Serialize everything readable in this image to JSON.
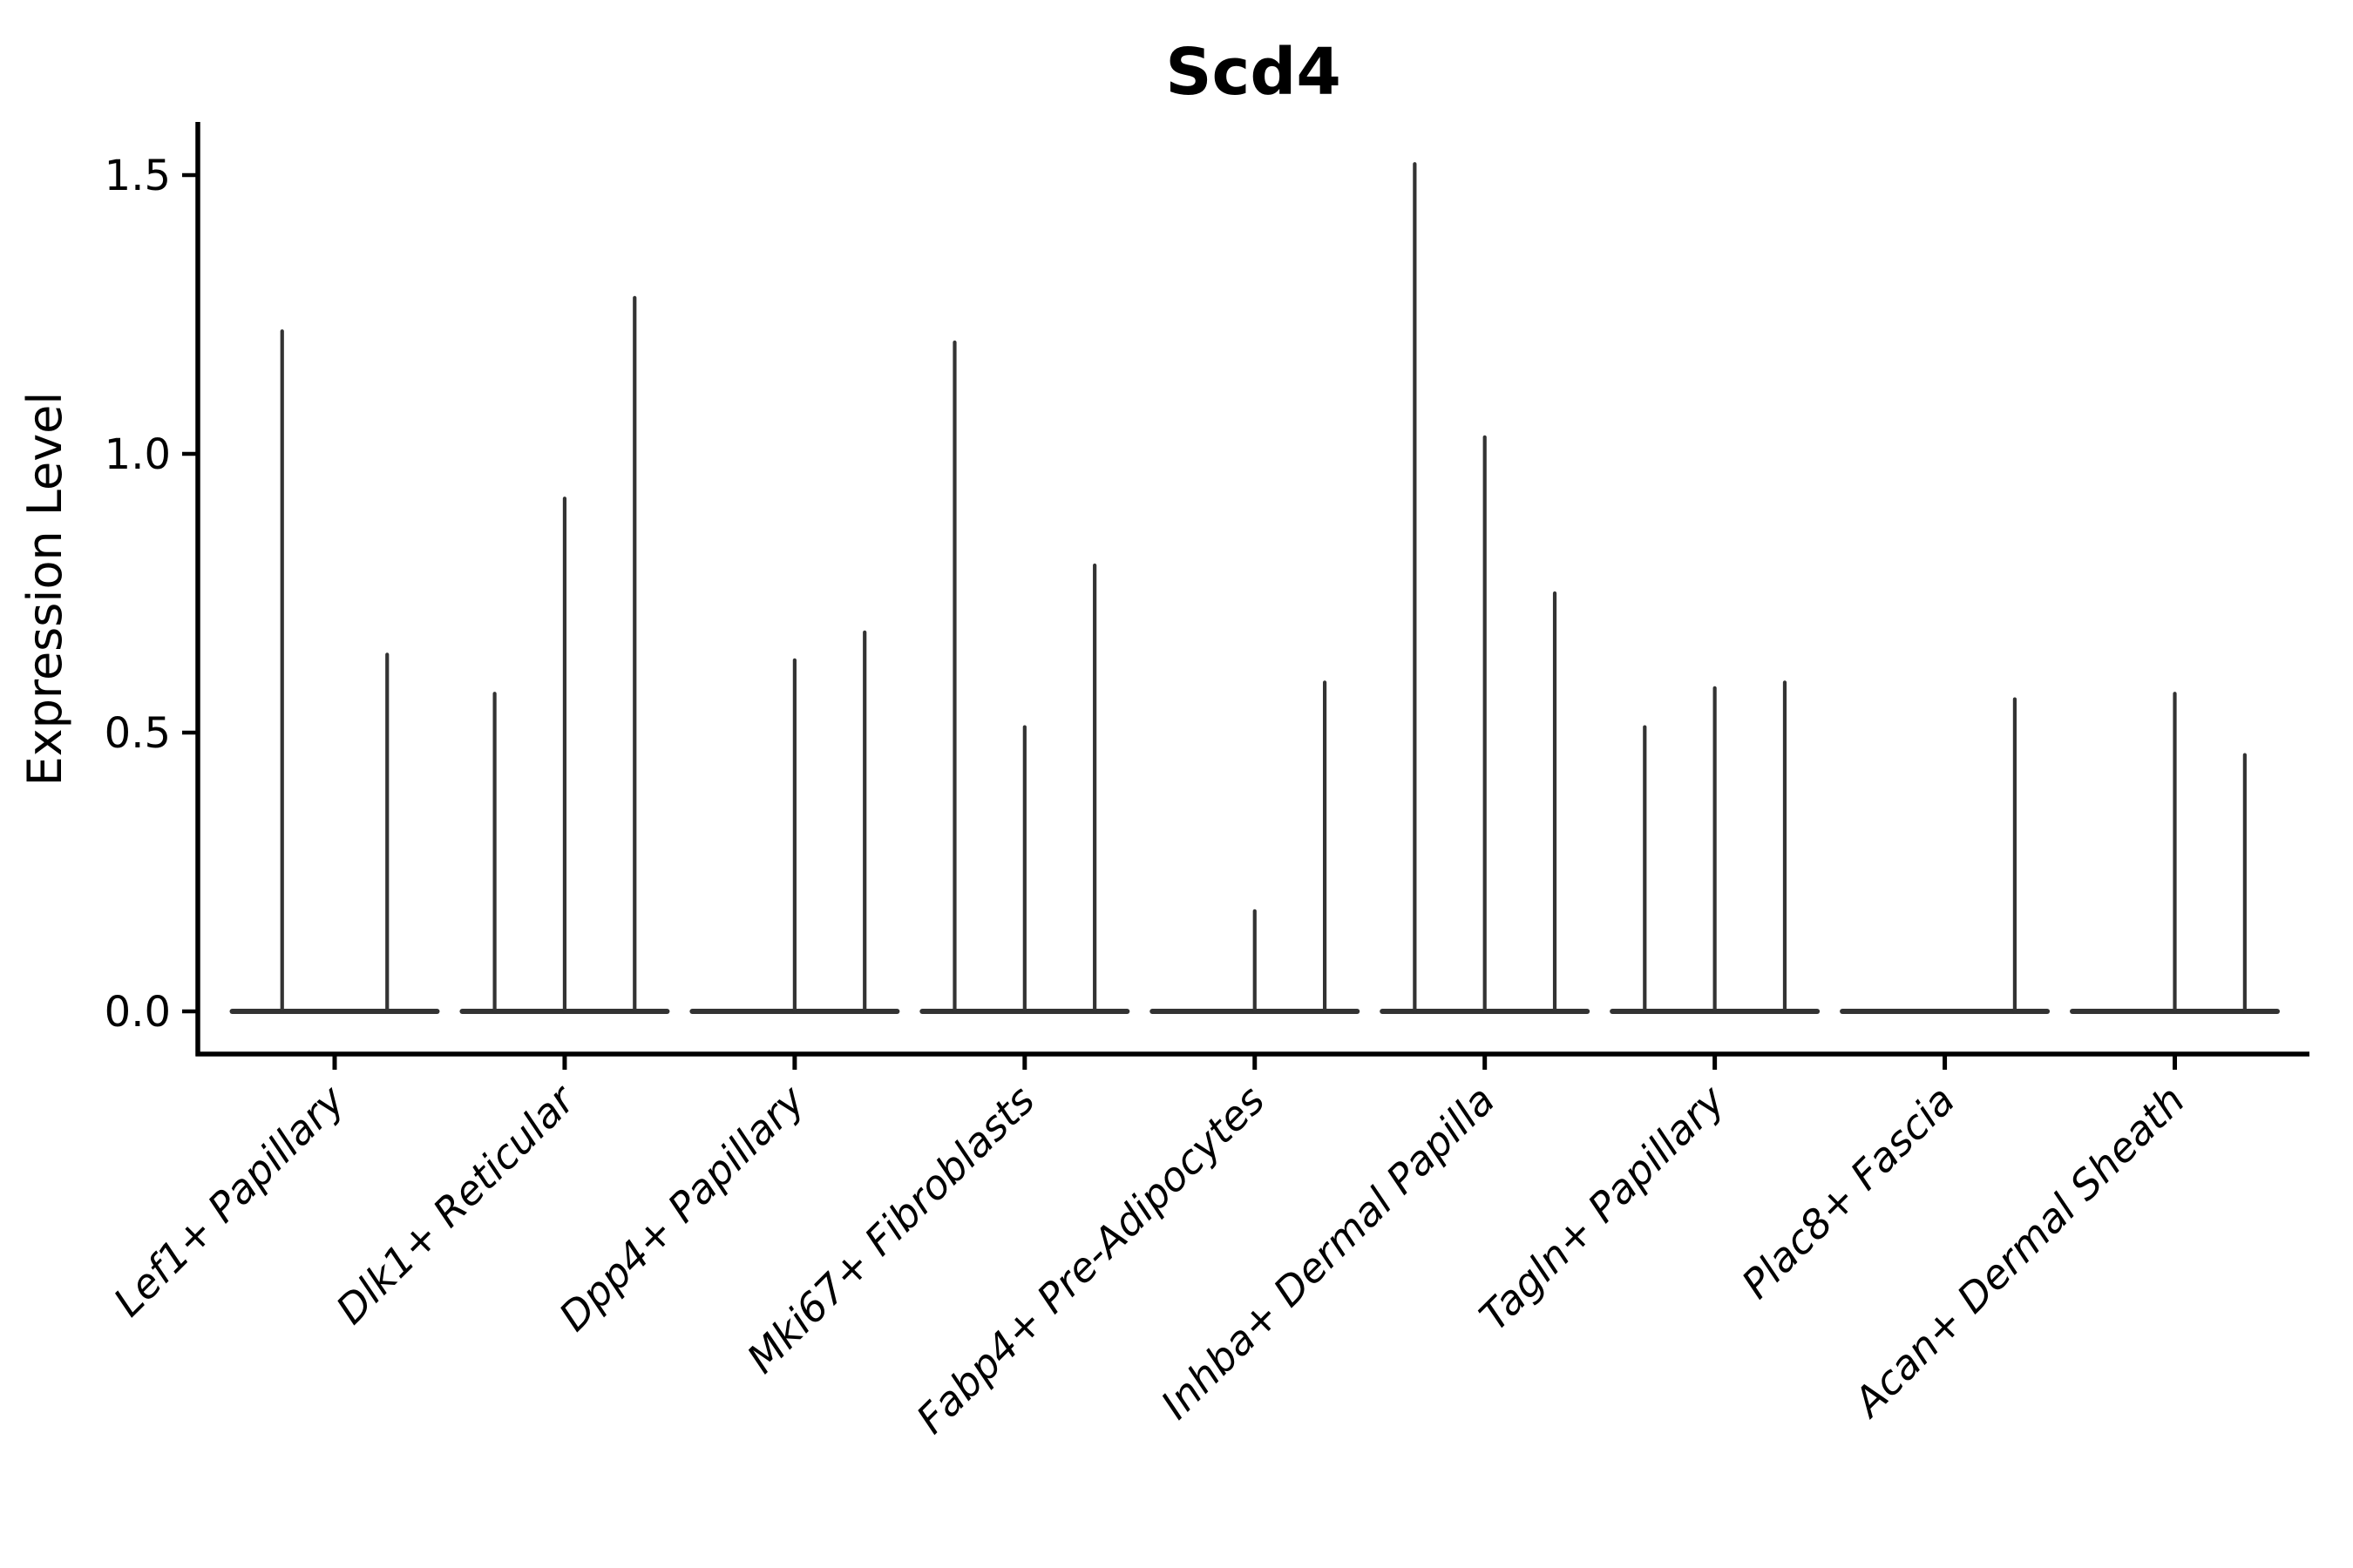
{
  "chart_data": {
    "type": "violin",
    "title": "Scd4",
    "xlabel": "",
    "ylabel": "Expression Level",
    "ytick_labels": [
      "0.0",
      "0.5",
      "1.0",
      "1.5"
    ],
    "ytick_values": [
      0.0,
      0.5,
      1.0,
      1.5
    ],
    "ylim": [
      -0.08,
      1.6
    ],
    "grid": false,
    "legend_position": "none",
    "style_notes": "white background, only left and bottom spines, thin spike violins with flat base at zero",
    "categories": [
      "Lef1+ Papillary",
      "Dlk1+ Reticular",
      "Dpp4+ Papillary",
      "Mki67+ Fibroblasts",
      "Fabp4+ Pre-Adipocytes",
      "Inhba+ Dermal Papilla",
      "Tagln+ Papillary",
      "Plac8+ Fascia",
      "Acan+ Dermal Sheath"
    ],
    "groups": [
      {
        "label": "Lef1+ Papillary",
        "violin_max_values": [
          1.22,
          0.64
        ]
      },
      {
        "label": "Dlk1+ Reticular",
        "violin_max_values": [
          0.57,
          0.92,
          1.28
        ]
      },
      {
        "label": "Dpp4+ Papillary",
        "violin_max_values": [
          0.0,
          0.63,
          0.68
        ]
      },
      {
        "label": "Mki67+ Fibroblasts",
        "violin_max_values": [
          1.2,
          0.51,
          0.8
        ]
      },
      {
        "label": "Fabp4+ Pre-Adipocytes",
        "violin_max_values": [
          0.0,
          0.18,
          0.59
        ]
      },
      {
        "label": "Inhba+ Dermal Papilla",
        "violin_max_values": [
          1.52,
          1.03,
          0.75
        ]
      },
      {
        "label": "Tagln+ Papillary",
        "violin_max_values": [
          0.51,
          0.58,
          0.59
        ]
      },
      {
        "label": "Plac8+ Fascia",
        "violin_max_values": [
          0.0,
          0.0,
          0.56
        ]
      },
      {
        "label": "Acan+ Dermal Sheath",
        "violin_max_values": [
          0.0,
          0.57,
          0.46
        ]
      }
    ],
    "colors": {
      "violin_stroke": "#333333",
      "axis": "#000000",
      "text": "#000000",
      "background": "#ffffff"
    }
  }
}
